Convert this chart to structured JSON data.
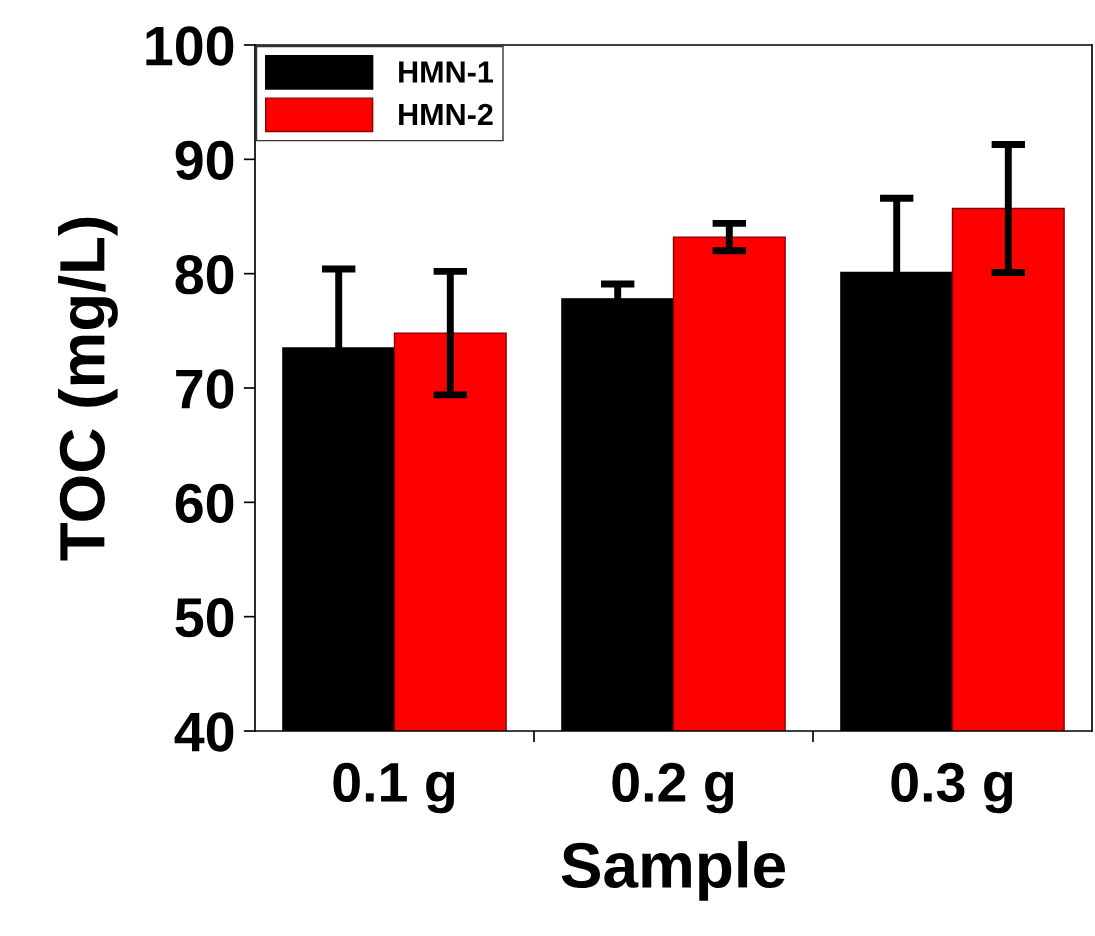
{
  "chart_data": {
    "type": "bar",
    "xlabel": "Sample",
    "ylabel": "TOC (mg/L)",
    "categories": [
      "0.1 g",
      "0.2 g",
      "0.3 g"
    ],
    "series": [
      {
        "name": "HMN-1",
        "color": "#000000",
        "values": [
          73.5,
          77.8,
          80.1
        ],
        "errors": [
          6.9,
          1.3,
          6.5
        ]
      },
      {
        "name": "HMN-2",
        "color": "#ff0000",
        "values": [
          74.8,
          83.2,
          85.7
        ],
        "errors": [
          5.4,
          1.2,
          5.6
        ]
      }
    ],
    "ylim": [
      40,
      100
    ],
    "yticks": [
      40,
      50,
      60,
      70,
      80,
      90,
      100
    ],
    "grid": false,
    "legend": "top left"
  }
}
